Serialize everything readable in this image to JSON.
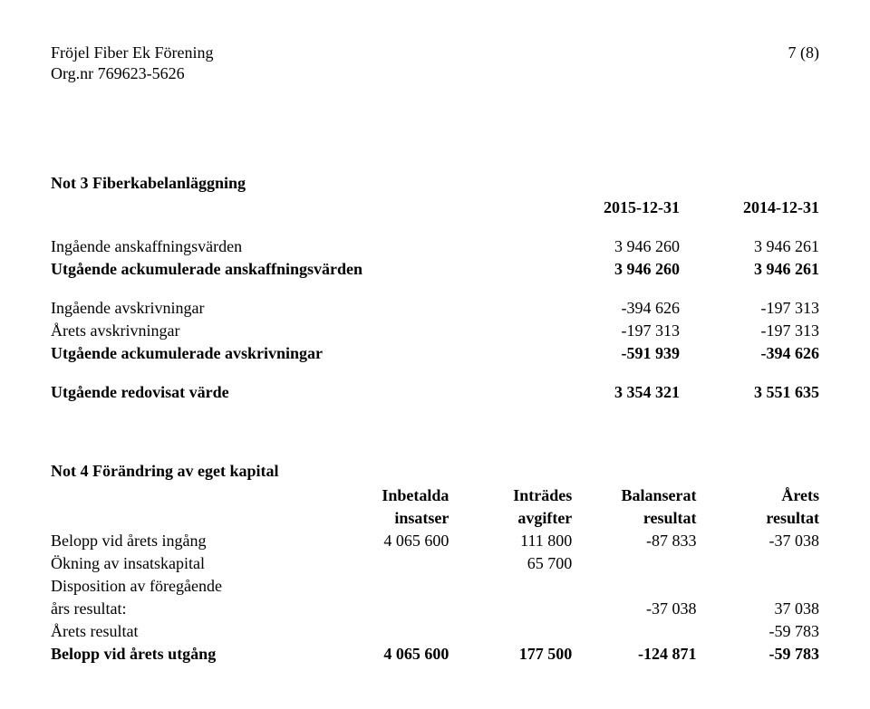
{
  "header": {
    "name": "Fröjel Fiber Ek Förening",
    "pageno": "7 (8)",
    "orgno": "Org.nr 769623-5626"
  },
  "note3": {
    "title": "Not 3 Fiberkabelanläggning",
    "col1": "2015-12-31",
    "col2": "2014-12-31",
    "rows": {
      "r1": {
        "label": "Ingående anskaffningsvärden",
        "v1": "3 946 260",
        "v2": "3 946 261"
      },
      "r2": {
        "label": "Utgående ackumulerade anskaffningsvärden",
        "v1": "3 946 260",
        "v2": "3 946 261"
      },
      "r3": {
        "label": "Ingående avskrivningar",
        "v1": "-394 626",
        "v2": "-197 313"
      },
      "r4": {
        "label": "Årets avskrivningar",
        "v1": "-197 313",
        "v2": "-197 313"
      },
      "r5": {
        "label": "Utgående ackumulerade avskrivningar",
        "v1": "-591 939",
        "v2": "-394 626"
      },
      "r6": {
        "label": "Utgående redovisat värde",
        "v1": "3 354 321",
        "v2": "3 551 635"
      }
    }
  },
  "note4": {
    "title": "Not 4 Förändring av eget kapital",
    "head": {
      "c1a": "Inbetalda",
      "c1b": "insatser",
      "c2a": "Inträdes",
      "c2b": "avgifter",
      "c3a": "Balanserat",
      "c3b": "resultat",
      "c4a": "Årets",
      "c4b": "resultat"
    },
    "rows": {
      "r1": {
        "label": "Belopp vid årets ingång",
        "c1": "4 065 600",
        "c2": "111 800",
        "c3": "-87 833",
        "c4": "-37 038"
      },
      "r2": {
        "label": "Ökning av insatskapital",
        "c1": "",
        "c2": "65 700",
        "c3": "",
        "c4": ""
      },
      "r3": {
        "label": "Disposition av föregående",
        "c1": "",
        "c2": "",
        "c3": "",
        "c4": ""
      },
      "r4": {
        "label": "års resultat:",
        "c1": "",
        "c2": "",
        "c3": "-37 038",
        "c4": "37 038"
      },
      "r5": {
        "label": "Årets resultat",
        "c1": "",
        "c2": "",
        "c3": "",
        "c4": "-59 783"
      },
      "r6": {
        "label": "Belopp vid årets utgång",
        "c1": "4 065 600",
        "c2": "177 500",
        "c3": "-124 871",
        "c4": "-59 783"
      }
    }
  }
}
